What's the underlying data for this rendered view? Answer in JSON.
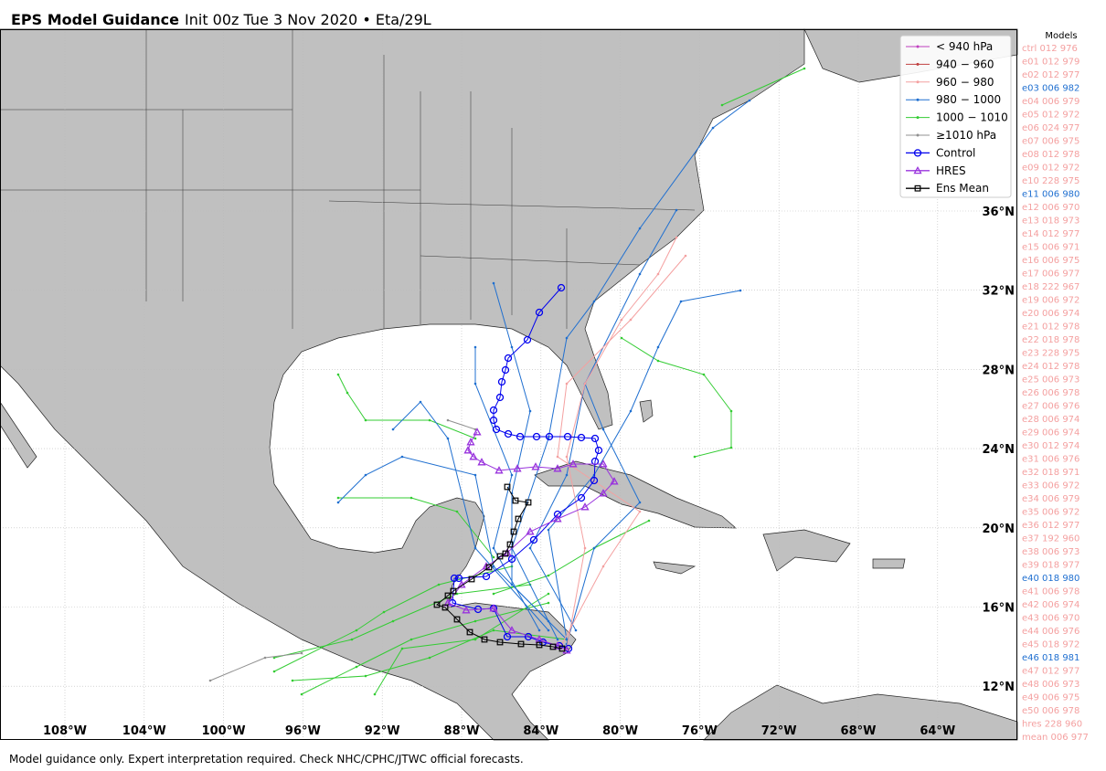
{
  "title": {
    "bold": "EPS Model Guidance",
    "rest": "Init 00z Tue 3 Nov 2020 • Eta/29L"
  },
  "lat_labels": [
    "36°N",
    "32°N",
    "28°N",
    "24°N",
    "20°N",
    "16°N",
    "12°N"
  ],
  "lon_labels": [
    "108°W",
    "104°W",
    "100°W",
    "96°W",
    "92°W",
    "88°W",
    "84°W",
    "80°W",
    "76°W",
    "72°W",
    "68°W",
    "64°W"
  ],
  "legend": [
    {
      "label": "< 940 hPa",
      "color": "#c040c0",
      "marker": "dot"
    },
    {
      "label": "940 − 960",
      "color": "#c04040",
      "marker": "dot"
    },
    {
      "label": "960 − 980",
      "color": "#f4a0a0",
      "marker": "dot"
    },
    {
      "label": "980 − 1000",
      "color": "#1f6fd0",
      "marker": "dot"
    },
    {
      "label": "1000 − 1010",
      "color": "#33cc33",
      "marker": "dot"
    },
    {
      "label": "≥1010 hPa",
      "color": "#909090",
      "marker": "dot"
    },
    {
      "label": "Control",
      "color": "#0000ee",
      "marker": "circle"
    },
    {
      "label": "HRES",
      "color": "#9933dd",
      "marker": "triangle"
    },
    {
      "label": "Ens Mean",
      "color": "#000000",
      "marker": "square"
    }
  ],
  "models_header": "Models",
  "models": [
    {
      "label": "ctrl 012 976",
      "color": "#f4a0a0"
    },
    {
      "label": "e01 012 979",
      "color": "#f4a0a0"
    },
    {
      "label": "e02 012 977",
      "color": "#f4a0a0"
    },
    {
      "label": "e03 006 982",
      "color": "#1f6fd0"
    },
    {
      "label": "e04 006 979",
      "color": "#f4a0a0"
    },
    {
      "label": "e05 012 972",
      "color": "#f4a0a0"
    },
    {
      "label": "e06 024 977",
      "color": "#f4a0a0"
    },
    {
      "label": "e07 006 975",
      "color": "#f4a0a0"
    },
    {
      "label": "e08 012 978",
      "color": "#f4a0a0"
    },
    {
      "label": "e09 012 972",
      "color": "#f4a0a0"
    },
    {
      "label": "e10 228 975",
      "color": "#f4a0a0"
    },
    {
      "label": "e11 006 980",
      "color": "#1f6fd0"
    },
    {
      "label": "e12 006 970",
      "color": "#f4a0a0"
    },
    {
      "label": "e13 018 973",
      "color": "#f4a0a0"
    },
    {
      "label": "e14 012 977",
      "color": "#f4a0a0"
    },
    {
      "label": "e15 006 971",
      "color": "#f4a0a0"
    },
    {
      "label": "e16 006 975",
      "color": "#f4a0a0"
    },
    {
      "label": "e17 006 977",
      "color": "#f4a0a0"
    },
    {
      "label": "e18 222 967",
      "color": "#f4a0a0"
    },
    {
      "label": "e19 006 972",
      "color": "#f4a0a0"
    },
    {
      "label": "e20 006 974",
      "color": "#f4a0a0"
    },
    {
      "label": "e21 012 978",
      "color": "#f4a0a0"
    },
    {
      "label": "e22 018 978",
      "color": "#f4a0a0"
    },
    {
      "label": "e23 228 975",
      "color": "#f4a0a0"
    },
    {
      "label": "e24 012 978",
      "color": "#f4a0a0"
    },
    {
      "label": "e25 006 973",
      "color": "#f4a0a0"
    },
    {
      "label": "e26 006 978",
      "color": "#f4a0a0"
    },
    {
      "label": "e27 006 976",
      "color": "#f4a0a0"
    },
    {
      "label": "e28 006 974",
      "color": "#f4a0a0"
    },
    {
      "label": "e29 006 974",
      "color": "#f4a0a0"
    },
    {
      "label": "e30 012 974",
      "color": "#f4a0a0"
    },
    {
      "label": "e31 006 976",
      "color": "#f4a0a0"
    },
    {
      "label": "e32 018 971",
      "color": "#f4a0a0"
    },
    {
      "label": "e33 006 972",
      "color": "#f4a0a0"
    },
    {
      "label": "e34 006 979",
      "color": "#f4a0a0"
    },
    {
      "label": "e35 006 972",
      "color": "#f4a0a0"
    },
    {
      "label": "e36 012 977",
      "color": "#f4a0a0"
    },
    {
      "label": "e37 192 960",
      "color": "#f4a0a0"
    },
    {
      "label": "e38 006 973",
      "color": "#f4a0a0"
    },
    {
      "label": "e39 018 977",
      "color": "#f4a0a0"
    },
    {
      "label": "e40 018 980",
      "color": "#1f6fd0"
    },
    {
      "label": "e41 006 978",
      "color": "#f4a0a0"
    },
    {
      "label": "e42 006 974",
      "color": "#f4a0a0"
    },
    {
      "label": "e43 006 970",
      "color": "#f4a0a0"
    },
    {
      "label": "e44 006 976",
      "color": "#f4a0a0"
    },
    {
      "label": "e45 018 972",
      "color": "#f4a0a0"
    },
    {
      "label": "e46 018 981",
      "color": "#1f6fd0"
    },
    {
      "label": "e47 012 977",
      "color": "#f4a0a0"
    },
    {
      "label": "e48 006 973",
      "color": "#f4a0a0"
    },
    {
      "label": "e49 006 975",
      "color": "#f4a0a0"
    },
    {
      "label": "e50 006 978",
      "color": "#f4a0a0"
    },
    {
      "label": "hres 228 960",
      "color": "#f4a0a0"
    },
    {
      "label": "mean 006 977",
      "color": "#f4a0a0"
    }
  ],
  "footer": "Model guidance only. Expert interpretation required. Check NHC/CPHC/JTWC official forecasts."
}
